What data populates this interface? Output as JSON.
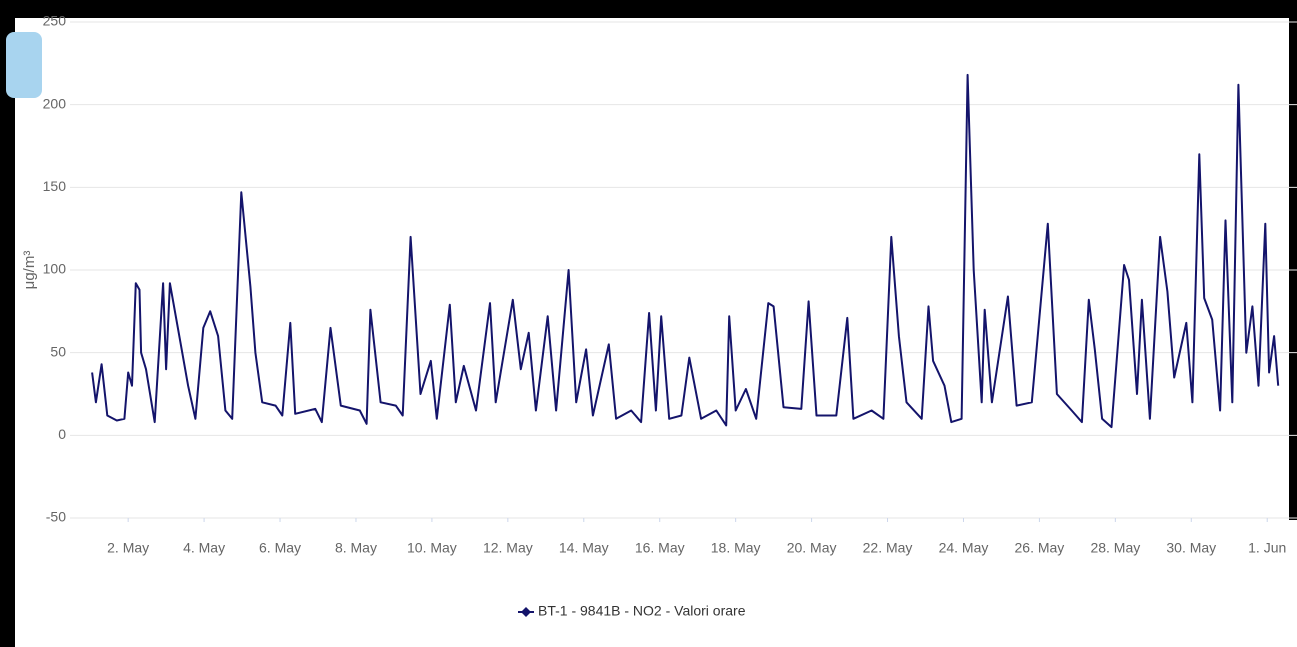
{
  "chart_data": {
    "type": "line",
    "ylabel": "μg/m³",
    "x": [
      1.05,
      1.15,
      1.3,
      1.45,
      1.7,
      1.9,
      2.0,
      2.1,
      2.2,
      2.3,
      2.34,
      2.47,
      2.7,
      2.92,
      3.0,
      3.1,
      3.37,
      3.58,
      3.77,
      3.98,
      4.16,
      4.37,
      4.56,
      4.74,
      4.98,
      5.22,
      5.35,
      5.53,
      5.88,
      6.06,
      6.27,
      6.4,
      6.93,
      7.1,
      7.33,
      7.6,
      8.1,
      8.28,
      8.38,
      8.65,
      9.05,
      9.23,
      9.44,
      9.7,
      9.97,
      10.13,
      10.47,
      10.63,
      10.84,
      11.16,
      11.53,
      11.68,
      12.13,
      12.34,
      12.55,
      12.74,
      13.05,
      13.27,
      13.6,
      13.8,
      14.06,
      14.24,
      14.66,
      14.85,
      15.25,
      15.51,
      15.72,
      15.9,
      16.04,
      16.25,
      16.57,
      16.78,
      17.09,
      17.49,
      17.75,
      17.83,
      18.0,
      18.27,
      18.54,
      18.86,
      19.0,
      19.26,
      19.73,
      19.92,
      20.13,
      20.65,
      20.94,
      21.1,
      21.58,
      21.89,
      22.1,
      22.3,
      22.5,
      22.9,
      23.08,
      23.2,
      23.5,
      23.68,
      23.95,
      24.11,
      24.27,
      24.48,
      24.56,
      24.75,
      25.17,
      25.4,
      25.8,
      26.22,
      26.46,
      26.85,
      27.12,
      27.3,
      27.46,
      27.65,
      27.9,
      28.23,
      28.36,
      28.57,
      28.7,
      28.91,
      29.18,
      29.37,
      29.55,
      29.87,
      30.03,
      30.21,
      30.34,
      30.55,
      30.76,
      30.9,
      31.08,
      31.24,
      31.45,
      31.61,
      31.77,
      31.95,
      32.05,
      32.18,
      32.29
    ],
    "series": [
      {
        "name": "BT-1 - 9841B - NO2 - Valori orare",
        "color": "#14146b",
        "values": [
          38,
          20,
          43,
          12,
          9,
          10,
          38,
          30,
          92,
          88,
          50,
          40,
          8,
          92,
          40,
          92,
          57,
          30,
          10,
          65,
          75,
          60,
          15,
          10,
          147,
          90,
          50,
          20,
          18,
          12,
          68,
          13,
          16,
          8,
          65,
          18,
          15,
          7,
          76,
          20,
          18,
          12,
          120,
          25,
          45,
          10,
          79,
          20,
          42,
          15,
          80,
          20,
          82,
          40,
          62,
          15,
          72,
          15,
          100,
          20,
          52,
          12,
          55,
          10,
          15,
          8,
          74,
          15,
          72,
          10,
          12,
          47,
          10,
          15,
          6,
          72,
          15,
          28,
          10,
          80,
          78,
          17,
          16,
          81,
          12,
          12,
          71,
          10,
          15,
          10,
          120,
          60,
          20,
          10,
          78,
          45,
          30,
          8,
          10,
          218,
          100,
          20,
          76,
          20,
          84,
          18,
          20,
          128,
          25,
          15,
          8,
          82,
          52,
          10,
          5,
          103,
          94,
          25,
          82,
          10,
          120,
          87,
          35,
          68,
          20,
          170,
          83,
          70,
          15,
          130,
          20,
          212,
          50,
          78,
          30,
          128,
          38,
          60,
          30
        ]
      }
    ],
    "xlim": [
      0.6,
      32.6
    ],
    "xticks": [
      {
        "value": 2,
        "label": "2. May"
      },
      {
        "value": 4,
        "label": "4. May"
      },
      {
        "value": 6,
        "label": "6. May"
      },
      {
        "value": 8,
        "label": "8. May"
      },
      {
        "value": 10,
        "label": "10. May"
      },
      {
        "value": 12,
        "label": "12. May"
      },
      {
        "value": 14,
        "label": "14. May"
      },
      {
        "value": 16,
        "label": "16. May"
      },
      {
        "value": 18,
        "label": "18. May"
      },
      {
        "value": 20,
        "label": "20. May"
      },
      {
        "value": 22,
        "label": "22. May"
      },
      {
        "value": 24,
        "label": "24. May"
      },
      {
        "value": 26,
        "label": "26. May"
      },
      {
        "value": 28,
        "label": "28. May"
      },
      {
        "value": 30,
        "label": "30. May"
      },
      {
        "value": 32,
        "label": "1. Jun"
      }
    ],
    "ylim": [
      -50,
      250
    ],
    "yticks": [
      -50,
      0,
      50,
      100,
      150,
      200,
      250
    ],
    "grid": true
  }
}
